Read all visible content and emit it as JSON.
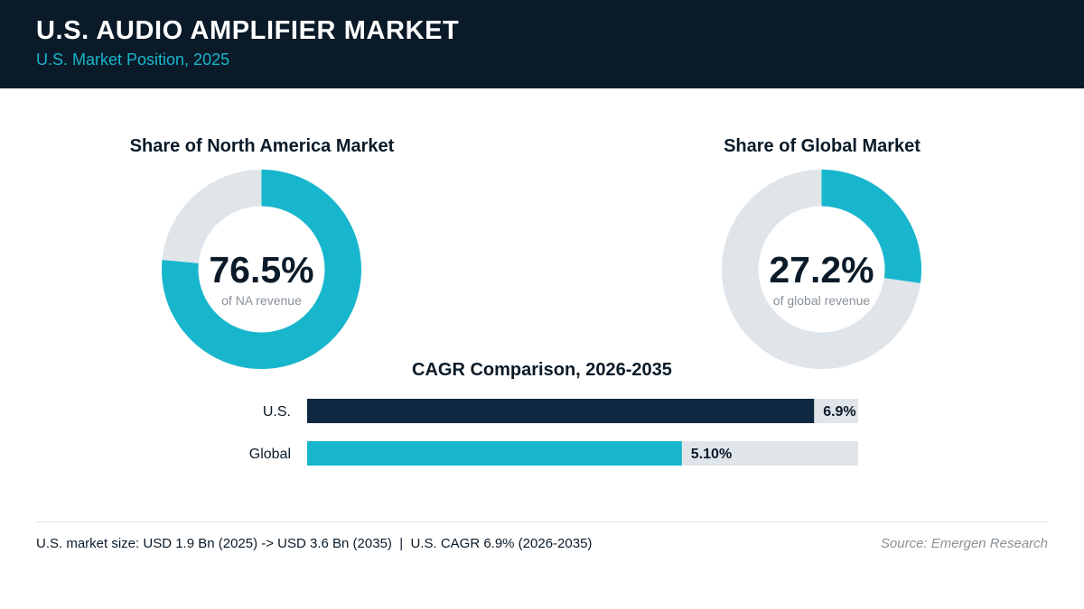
{
  "header": {
    "title": "U.S. AUDIO AMPLIFIER MARKET",
    "subtitle": "U.S. Market Position, 2025"
  },
  "colors": {
    "navy": "#0a1a28",
    "bar_navy": "#0d2840",
    "teal": "#17b6cc",
    "track": "#e0e5ea",
    "muted": "#8a9199"
  },
  "chart_data": [
    {
      "type": "pie",
      "title": "Share of North America Market",
      "value": 76.5,
      "value_label": "76.5%",
      "caption": "of NA revenue"
    },
    {
      "type": "pie",
      "title": "Share of Global Market",
      "value": 27.2,
      "value_label": "27.2%",
      "caption": "of global revenue"
    },
    {
      "type": "bar",
      "title": "CAGR Comparison, 2026-2035",
      "orientation": "horizontal",
      "categories": [
        "U.S.",
        "Global"
      ],
      "values": [
        6.9,
        5.1
      ],
      "value_labels": [
        "6.9%",
        "5.10%"
      ],
      "xlim": [
        0,
        7.5
      ]
    }
  ],
  "footer": {
    "note": "U.S. market size: USD 1.9 Bn (2025) -> USD 3.6 Bn (2035)  |  U.S. CAGR 6.9% (2026-2035)",
    "source": "Source: Emergen Research"
  }
}
